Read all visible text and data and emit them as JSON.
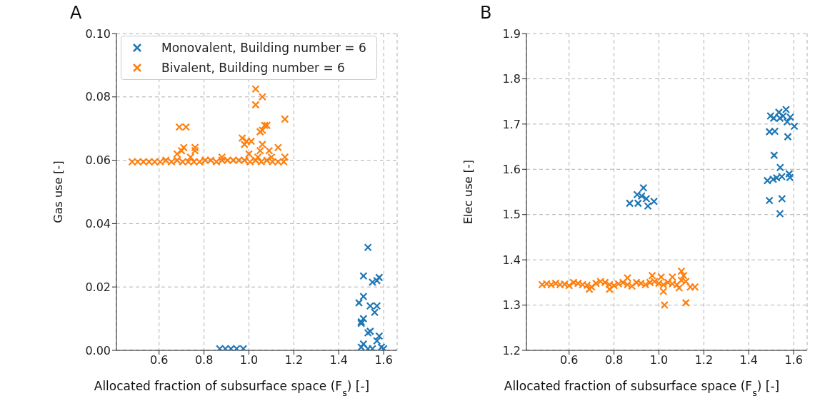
{
  "chart_data": [
    {
      "type": "scatter",
      "title": "A",
      "xlabel": "Allocated fraction of subsurface space (F$_{s}$) [-]",
      "ylabel": "Gas use [-]",
      "xlim": [
        0.41,
        1.66
      ],
      "ylim": [
        0,
        0.1
      ],
      "xticks": [
        0.6,
        0.8,
        {
          "value": 1,
          "label": "1.0"
        },
        1.2,
        1.4,
        1.6
      ],
      "yticks": [
        {
          "value": 0,
          "label": "0.00"
        },
        {
          "value": 0.02,
          "label": "0.02"
        },
        {
          "value": 0.04,
          "label": "0.04"
        },
        {
          "value": 0.06,
          "label": "0.06"
        },
        {
          "value": 0.08,
          "label": "0.08"
        },
        {
          "value": 0.1,
          "label": "0.10"
        }
      ],
      "grid": true,
      "legend": "top left",
      "marker": "cross",
      "series": [
        {
          "name": "Monovalent, Building number = 6",
          "color": "#1f77b4",
          "x": [
            0.87,
            0.895,
            0.92,
            0.945,
            0.975,
            1.53,
            1.51,
            1.55,
            1.57,
            1.58,
            1.49,
            1.51,
            1.54,
            1.57,
            1.56,
            1.5,
            1.51,
            1.5,
            1.53,
            1.54,
            1.58,
            1.57,
            1.5,
            1.51,
            1.53,
            1.55,
            1.59,
            1.6
          ],
          "values": [
            0.0005,
            0.0005,
            0.0005,
            0.0005,
            0.0005,
            0.0325,
            0.0235,
            0.0215,
            0.022,
            0.023,
            0.015,
            0.017,
            0.014,
            0.014,
            0.012,
            0.009,
            0.01,
            0.0085,
            0.0055,
            0.006,
            0.0045,
            0.003,
            0.001,
            0.002,
            0.0005,
            0.0005,
            0.001,
            0.0005
          ]
        },
        {
          "name": "Bivalent, Building number = 6",
          "color": "#ff7f0e",
          "x": [
            0.48,
            0.505,
            0.53,
            0.555,
            0.58,
            0.605,
            0.63,
            0.655,
            0.68,
            0.705,
            0.73,
            0.755,
            0.78,
            0.805,
            0.83,
            0.855,
            0.88,
            0.905,
            0.93,
            0.955,
            0.98,
            1.005,
            1.03,
            1.055,
            1.08,
            1.105,
            1.13,
            1.155,
            0.69,
            0.72,
            0.7,
            0.71,
            0.68,
            0.76,
            0.76,
            0.74,
            0.88,
            0.97,
            0.98,
            0.99,
            1.01,
            1.0,
            1.03,
            1.03,
            1.06,
            1.05,
            1.06,
            1.07,
            1.08,
            1.06,
            1.05,
            1.09,
            1.13,
            1.16,
            1.16,
            1.1,
            1.04
          ],
          "values": [
            0.0595,
            0.0595,
            0.0595,
            0.0595,
            0.0595,
            0.0595,
            0.06,
            0.0595,
            0.06,
            0.0595,
            0.0595,
            0.0595,
            0.0595,
            0.06,
            0.06,
            0.0595,
            0.06,
            0.06,
            0.06,
            0.06,
            0.06,
            0.0595,
            0.06,
            0.0595,
            0.06,
            0.0595,
            0.0595,
            0.0595,
            0.0705,
            0.0705,
            0.063,
            0.064,
            0.062,
            0.064,
            0.063,
            0.061,
            0.061,
            0.067,
            0.065,
            0.066,
            0.066,
            0.062,
            0.0825,
            0.0775,
            0.08,
            0.069,
            0.0695,
            0.071,
            0.071,
            0.065,
            0.063,
            0.063,
            0.064,
            0.073,
            0.061,
            0.061,
            0.061
          ]
        }
      ]
    },
    {
      "type": "scatter",
      "title": "B",
      "xlabel": "Allocated fraction of subsurface space (F$_{s}$) [-]",
      "ylabel": "Elec use [-]",
      "xlim": [
        0.41,
        1.66
      ],
      "ylim": [
        1.2,
        1.9
      ],
      "xticks": [
        0.6,
        0.8,
        {
          "value": 1,
          "label": "1.0"
        },
        1.2,
        1.4,
        1.6
      ],
      "yticks": [
        1.2,
        1.3,
        1.4,
        1.5,
        1.6,
        1.7,
        1.8,
        1.9
      ],
      "grid": true,
      "marker": "cross",
      "series": [
        {
          "color": "#1f77b4",
          "x": [
            0.87,
            0.903,
            0.907,
            0.931,
            0.923,
            0.944,
            0.951,
            0.978,
            1.497,
            1.511,
            1.492,
            1.516,
            1.534,
            1.539,
            1.553,
            1.566,
            1.571,
            1.585,
            1.603,
            1.574,
            1.513,
            1.54,
            1.483,
            1.509,
            1.524,
            1.547,
            1.58,
            1.583,
            1.492,
            1.548,
            1.539
          ],
          "values": [
            1.525,
            1.544,
            1.525,
            1.559,
            1.541,
            1.535,
            1.519,
            1.529,
            1.718,
            1.713,
            1.683,
            1.684,
            1.726,
            1.713,
            1.718,
            1.732,
            1.705,
            1.715,
            1.695,
            1.672,
            1.631,
            1.604,
            1.575,
            1.578,
            1.581,
            1.584,
            1.59,
            1.582,
            1.531,
            1.535,
            1.502
          ]
        },
        {
          "color": "#ff7f0e",
          "x": [
            0.48,
            0.5,
            0.52,
            0.54,
            0.56,
            0.58,
            0.6,
            0.62,
            0.64,
            0.66,
            0.68,
            0.7,
            0.72,
            0.74,
            0.76,
            0.78,
            0.8,
            0.82,
            0.84,
            0.86,
            0.88,
            0.9,
            0.92,
            0.94,
            0.96,
            0.98,
            1.0,
            1.02,
            1.04,
            1.06,
            1.08,
            1.1,
            1.12,
            1.14,
            1.16,
            0.69,
            0.78,
            0.86,
            0.97,
            1.01,
            1.06,
            1.1,
            1.11,
            1.025,
            1.12,
            1.02,
            1.09
          ],
          "values": [
            1.345,
            1.347,
            1.345,
            1.348,
            1.345,
            1.346,
            1.343,
            1.35,
            1.348,
            1.345,
            1.344,
            1.34,
            1.348,
            1.352,
            1.35,
            1.345,
            1.343,
            1.347,
            1.35,
            1.345,
            1.342,
            1.35,
            1.348,
            1.345,
            1.35,
            1.352,
            1.348,
            1.345,
            1.35,
            1.347,
            1.345,
            1.355,
            1.352,
            1.34,
            1.34,
            1.335,
            1.335,
            1.36,
            1.365,
            1.362,
            1.362,
            1.375,
            1.365,
            1.3,
            1.305,
            1.33,
            1.338
          ]
        }
      ]
    }
  ]
}
